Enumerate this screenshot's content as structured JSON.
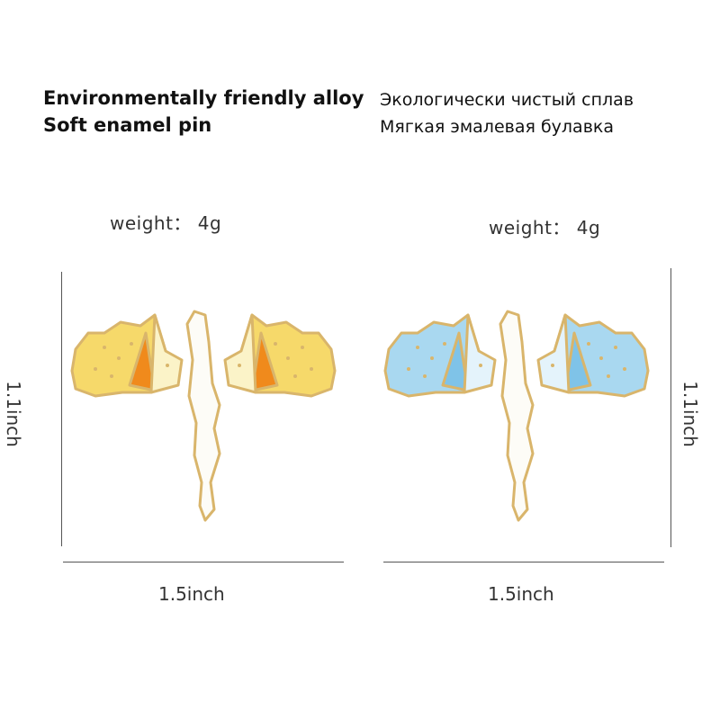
{
  "left": {
    "line1": "Environmentally friendly alloy",
    "line2": "Soft enamel pin",
    "weight": "weight： 4g",
    "height": "1.1inch",
    "width": "1.5inch",
    "wing_colors": [
      "#f6d96a",
      "#f08a1c",
      "#fbf3c8"
    ]
  },
  "right": {
    "line1": "Экологически чистый сплав",
    "line2": "Мягкая эмалевая булавка",
    "weight": "weight： 4g",
    "height": "1.1inch",
    "width": "1.5inch",
    "wing_colors": [
      "#a9d8f0",
      "#7fc3e8",
      "#e4f3fb"
    ]
  },
  "colors": {
    "outline": "#d9b56b",
    "body": "#fdfcf7"
  }
}
